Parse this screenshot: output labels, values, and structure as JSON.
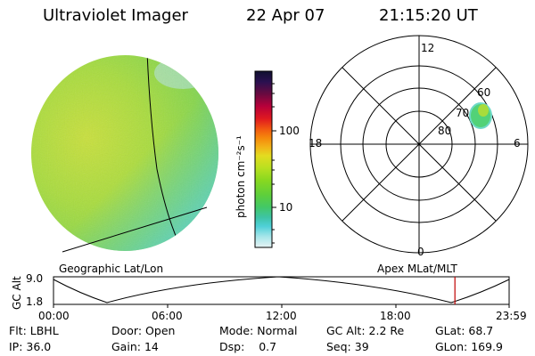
{
  "header": {
    "instrument": "Ultraviolet Imager",
    "date": "22 Apr 07",
    "time": "21:15:20 UT"
  },
  "colorbar": {
    "unit_label": "photon cm⁻²s⁻¹",
    "ticks": [
      "100",
      "10"
    ],
    "colors_top_to_bottom": [
      "#101030",
      "#2a1050",
      "#6a0a40",
      "#b8003a",
      "#e0191f",
      "#f25a10",
      "#f58a0c",
      "#f2b218",
      "#e3dc20",
      "#b8e020",
      "#88d820",
      "#5fcf3a",
      "#43c865",
      "#3ec4a5",
      "#4fd0d8",
      "#a8e6ea",
      "#e6f3f4"
    ]
  },
  "polar_plot": {
    "mlt_labels": [
      "12",
      "18",
      "6",
      "0"
    ],
    "lat_labels": [
      "60",
      "70",
      "80"
    ]
  },
  "timeline": {
    "axis_label": "GC Alt",
    "y_ticks": [
      "9.0",
      "1.8"
    ],
    "left_caption": "Geographic Lat/Lon",
    "right_caption": "Apex MLat/MLT",
    "time_ticks": [
      "00:00",
      "06:00",
      "12:00",
      "18:00",
      "23:59"
    ],
    "current_marker_fraction": 0.881,
    "marker_color": "#c00000"
  },
  "footer": {
    "row1": [
      {
        "label": "Flt:",
        "value": "LBHL"
      },
      {
        "label": "Door:",
        "value": "Open"
      },
      {
        "label": "Mode:",
        "value": "Normal"
      },
      {
        "label": "GC Alt:",
        "value": "2.2 Re"
      },
      {
        "label": "GLat:",
        "value": "68.7"
      }
    ],
    "row2": [
      {
        "label": "IP:",
        "value": "36.0"
      },
      {
        "label": "Gain:",
        "value": "14"
      },
      {
        "label": "Dsp:",
        "value": "0.7"
      },
      {
        "label": "Seq:",
        "value": "39"
      },
      {
        "label": "GLon:",
        "value": "169.9"
      }
    ]
  }
}
